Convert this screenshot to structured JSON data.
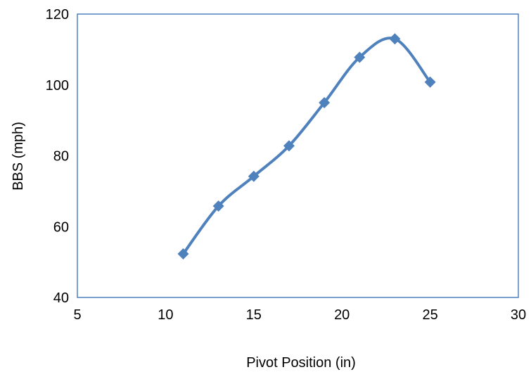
{
  "chart_data": {
    "type": "scatter",
    "title": "",
    "xlabel": "Pivot Position (in)",
    "ylabel": "BBS (mph)",
    "xlim": [
      5,
      30
    ],
    "ylim": [
      40,
      120
    ],
    "xticks": [
      5,
      10,
      15,
      20,
      25,
      30
    ],
    "yticks": [
      40,
      60,
      80,
      100,
      120
    ],
    "grid": false,
    "legend": "none",
    "line_style": "smoothed",
    "marker": "diamond",
    "series": [
      {
        "x": [
          11,
          13,
          15,
          17,
          19,
          21,
          23,
          25
        ],
        "y": [
          52.3,
          65.8,
          74.2,
          82.8,
          95.0,
          107.8,
          113.0,
          100.8
        ]
      }
    ],
    "colors": {
      "series": "#4f81bd",
      "axis": "#4f81bd",
      "text": "#000000"
    }
  }
}
